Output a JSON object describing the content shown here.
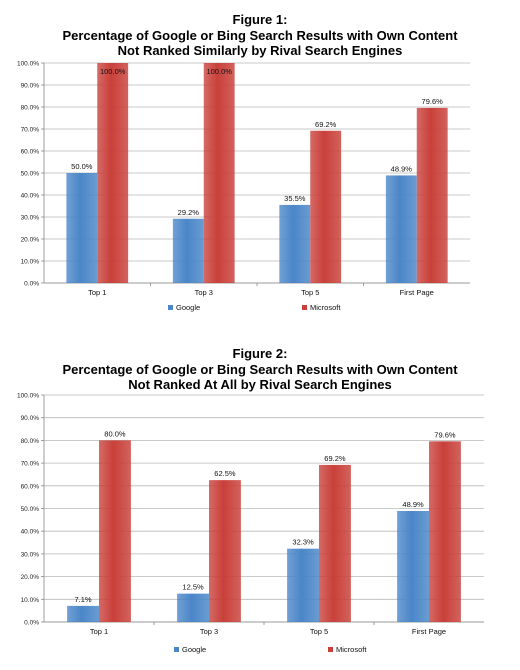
{
  "chart_data": [
    {
      "type": "bar",
      "title_line1": "Figure 1:",
      "title_line2": "Percentage of Google or Bing Search Results with Own Content",
      "title_line3": "Not Ranked Similarly by Rival Search Engines",
      "categories": [
        "Top 1",
        "Top 3",
        "Top 5",
        "First Page"
      ],
      "series": [
        {
          "name": "Google",
          "values": [
            50.0,
            29.2,
            35.5,
            48.9
          ],
          "labels": [
            "50.0%",
            "29.2%",
            "35.5%",
            "48.9%"
          ],
          "color": "#4a86c8"
        },
        {
          "name": "Microsoft",
          "values": [
            100.0,
            100.0,
            69.2,
            79.6
          ],
          "labels": [
            "100.0%",
            "100.0%",
            "69.2%",
            "79.6%"
          ],
          "color": "#c9403a"
        }
      ],
      "ylim": [
        0,
        100
      ],
      "yticks": [
        "0.0%",
        "10.0%",
        "20.0%",
        "30.0%",
        "40.0%",
        "50.0%",
        "60.0%",
        "70.0%",
        "80.0%",
        "90.0%",
        "100.0%"
      ],
      "grid": true,
      "legend": "bottom"
    },
    {
      "type": "bar",
      "title_line1": "Figure 2:",
      "title_line2": "Percentage of Google or Bing Search Results with Own Content",
      "title_line3": "Not Ranked At All by Rival Search Engines",
      "categories": [
        "Top 1",
        "Top 3",
        "Top 5",
        "First Page"
      ],
      "series": [
        {
          "name": "Google",
          "values": [
            7.1,
            12.5,
            32.3,
            48.9
          ],
          "labels": [
            "7.1%",
            "12.5%",
            "32.3%",
            "48.9%"
          ],
          "color": "#4a86c8"
        },
        {
          "name": "Microsoft",
          "values": [
            80.0,
            62.5,
            69.2,
            79.6
          ],
          "labels": [
            "80.0%",
            "62.5%",
            "69.2%",
            "79.6%"
          ],
          "color": "#c9403a"
        }
      ],
      "ylim": [
        0,
        100
      ],
      "yticks": [
        "0.0%",
        "10.0%",
        "20.0%",
        "30.0%",
        "40.0%",
        "50.0%",
        "60.0%",
        "70.0%",
        "80.0%",
        "90.0%",
        "100.0%"
      ],
      "grid": true,
      "legend": "bottom"
    }
  ]
}
